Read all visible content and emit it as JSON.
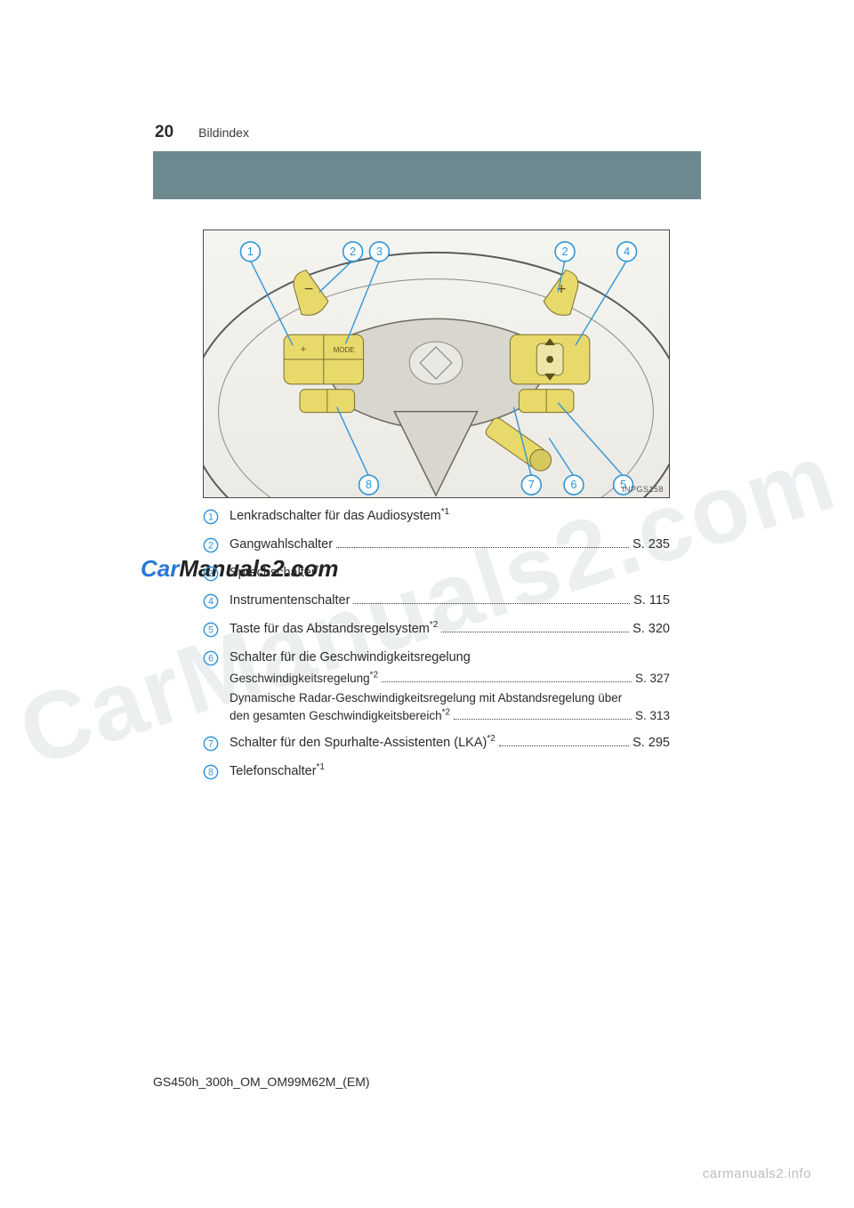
{
  "page": {
    "number": "20",
    "section": "Bildindex"
  },
  "colors": {
    "bar": "#6e8890",
    "circle_stroke": "#2f95d6",
    "callout_highlight": "#e8d96b",
    "wheel_fill": "#d9d7cd",
    "wheel_stroke": "#5a5a5a"
  },
  "illustration": {
    "code": "INPGS158",
    "top_callouts": [
      "1",
      "2",
      "3",
      "2",
      "4"
    ],
    "bottom_callouts": [
      "8",
      "7",
      "6",
      "5"
    ]
  },
  "items": [
    {
      "n": "1",
      "text": "Lenkradschalter für das Audiosystem",
      "sup": "*1"
    },
    {
      "n": "2",
      "text": "Gangwahlschalter",
      "page": "S. 235"
    },
    {
      "n": "3",
      "text": "Sprechschalter",
      "sup": "*1"
    },
    {
      "n": "4",
      "text": "Instrumentenschalter",
      "page": "S. 115"
    },
    {
      "n": "5",
      "text": "Taste für das Abstandsregelsystem",
      "sup": "*2",
      "page": "S. 320"
    },
    {
      "n": "6",
      "text": "Schalter für die Geschwindigkeitsregelung",
      "subs": [
        {
          "text": "Geschwindigkeitsregelung",
          "sup": "*2",
          "page": "S. 327"
        },
        {
          "text": "Dynamische Radar-Geschwindigkeitsregelung mit Abstandsregelung über den gesamten Geschwindigkeitsbereich",
          "sup": "*2",
          "page": "S. 313",
          "wrap": true
        }
      ]
    },
    {
      "n": "7",
      "text": "Schalter für den Spurhalte-Assistenten (LKA)",
      "sup": "*2",
      "page": "S. 295"
    },
    {
      "n": "8",
      "text": "Telefonschalter",
      "sup": "*1"
    }
  ],
  "doc_code": "GS450h_300h_OM_OM99M62M_(EM)",
  "footer": "carmanuals2.info",
  "watermark": "CarManuals2.com",
  "watermark2_a": "Car",
  "watermark2_b": "Manuals2.com"
}
